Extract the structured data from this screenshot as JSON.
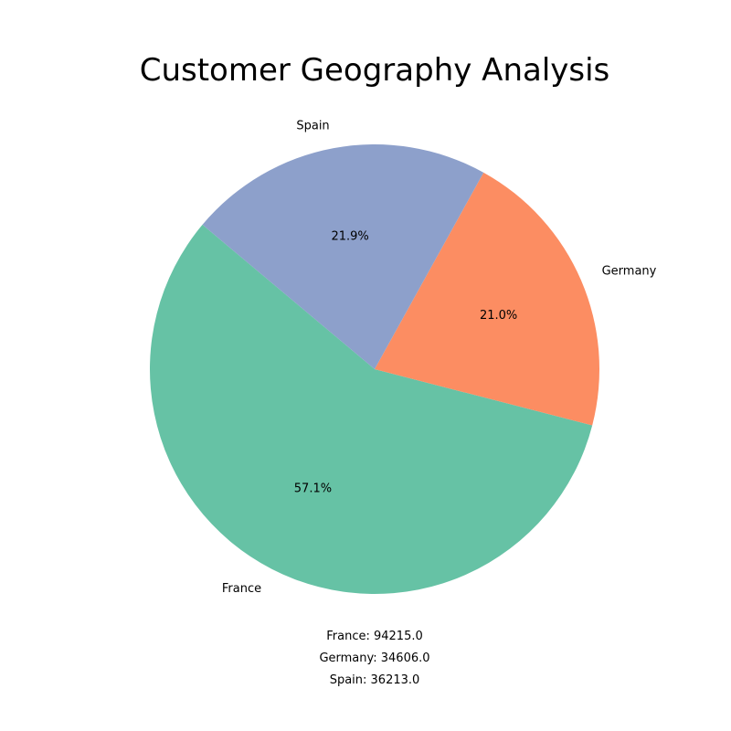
{
  "chart_data": {
    "type": "pie",
    "title": "Customer Geography Analysis",
    "categories": [
      "France",
      "Germany",
      "Spain"
    ],
    "values": [
      94215.0,
      34606.0,
      36213.0
    ],
    "percent_labels": [
      "57.1%",
      "21.0%",
      "21.9%"
    ],
    "colors": [
      "#66c2a5",
      "#fc8d62",
      "#8da0cb"
    ],
    "legend": "none",
    "footer_lines": [
      "France: 94215.0",
      "Germany: 34606.0",
      "Spain: 36213.0"
    ]
  }
}
